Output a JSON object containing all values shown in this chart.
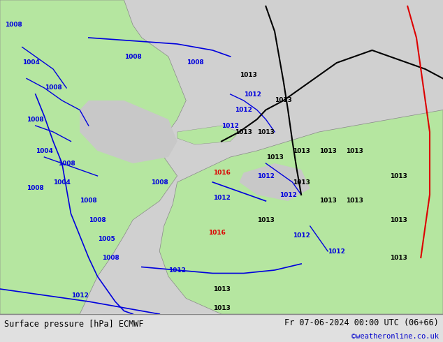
{
  "title_left": "Surface pressure [hPa] ECMWF",
  "title_right": "Fr 07-06-2024 00:00 UTC (06+66)",
  "credit": "©weatheronline.co.uk",
  "bg_map_color": "#c8c8c8",
  "land_color": "#b5e6a0",
  "ocean_color": "#c8c8c8",
  "bottom_bar_color": "#e0e0e0",
  "text_color_black": "#000000",
  "text_color_blue": "#0000cc",
  "text_color_red": "#cc0000",
  "contour_blue": "#0000dd",
  "contour_black": "#000000",
  "contour_red": "#dd0000",
  "fig_width": 6.34,
  "fig_height": 4.9,
  "dpi": 100
}
